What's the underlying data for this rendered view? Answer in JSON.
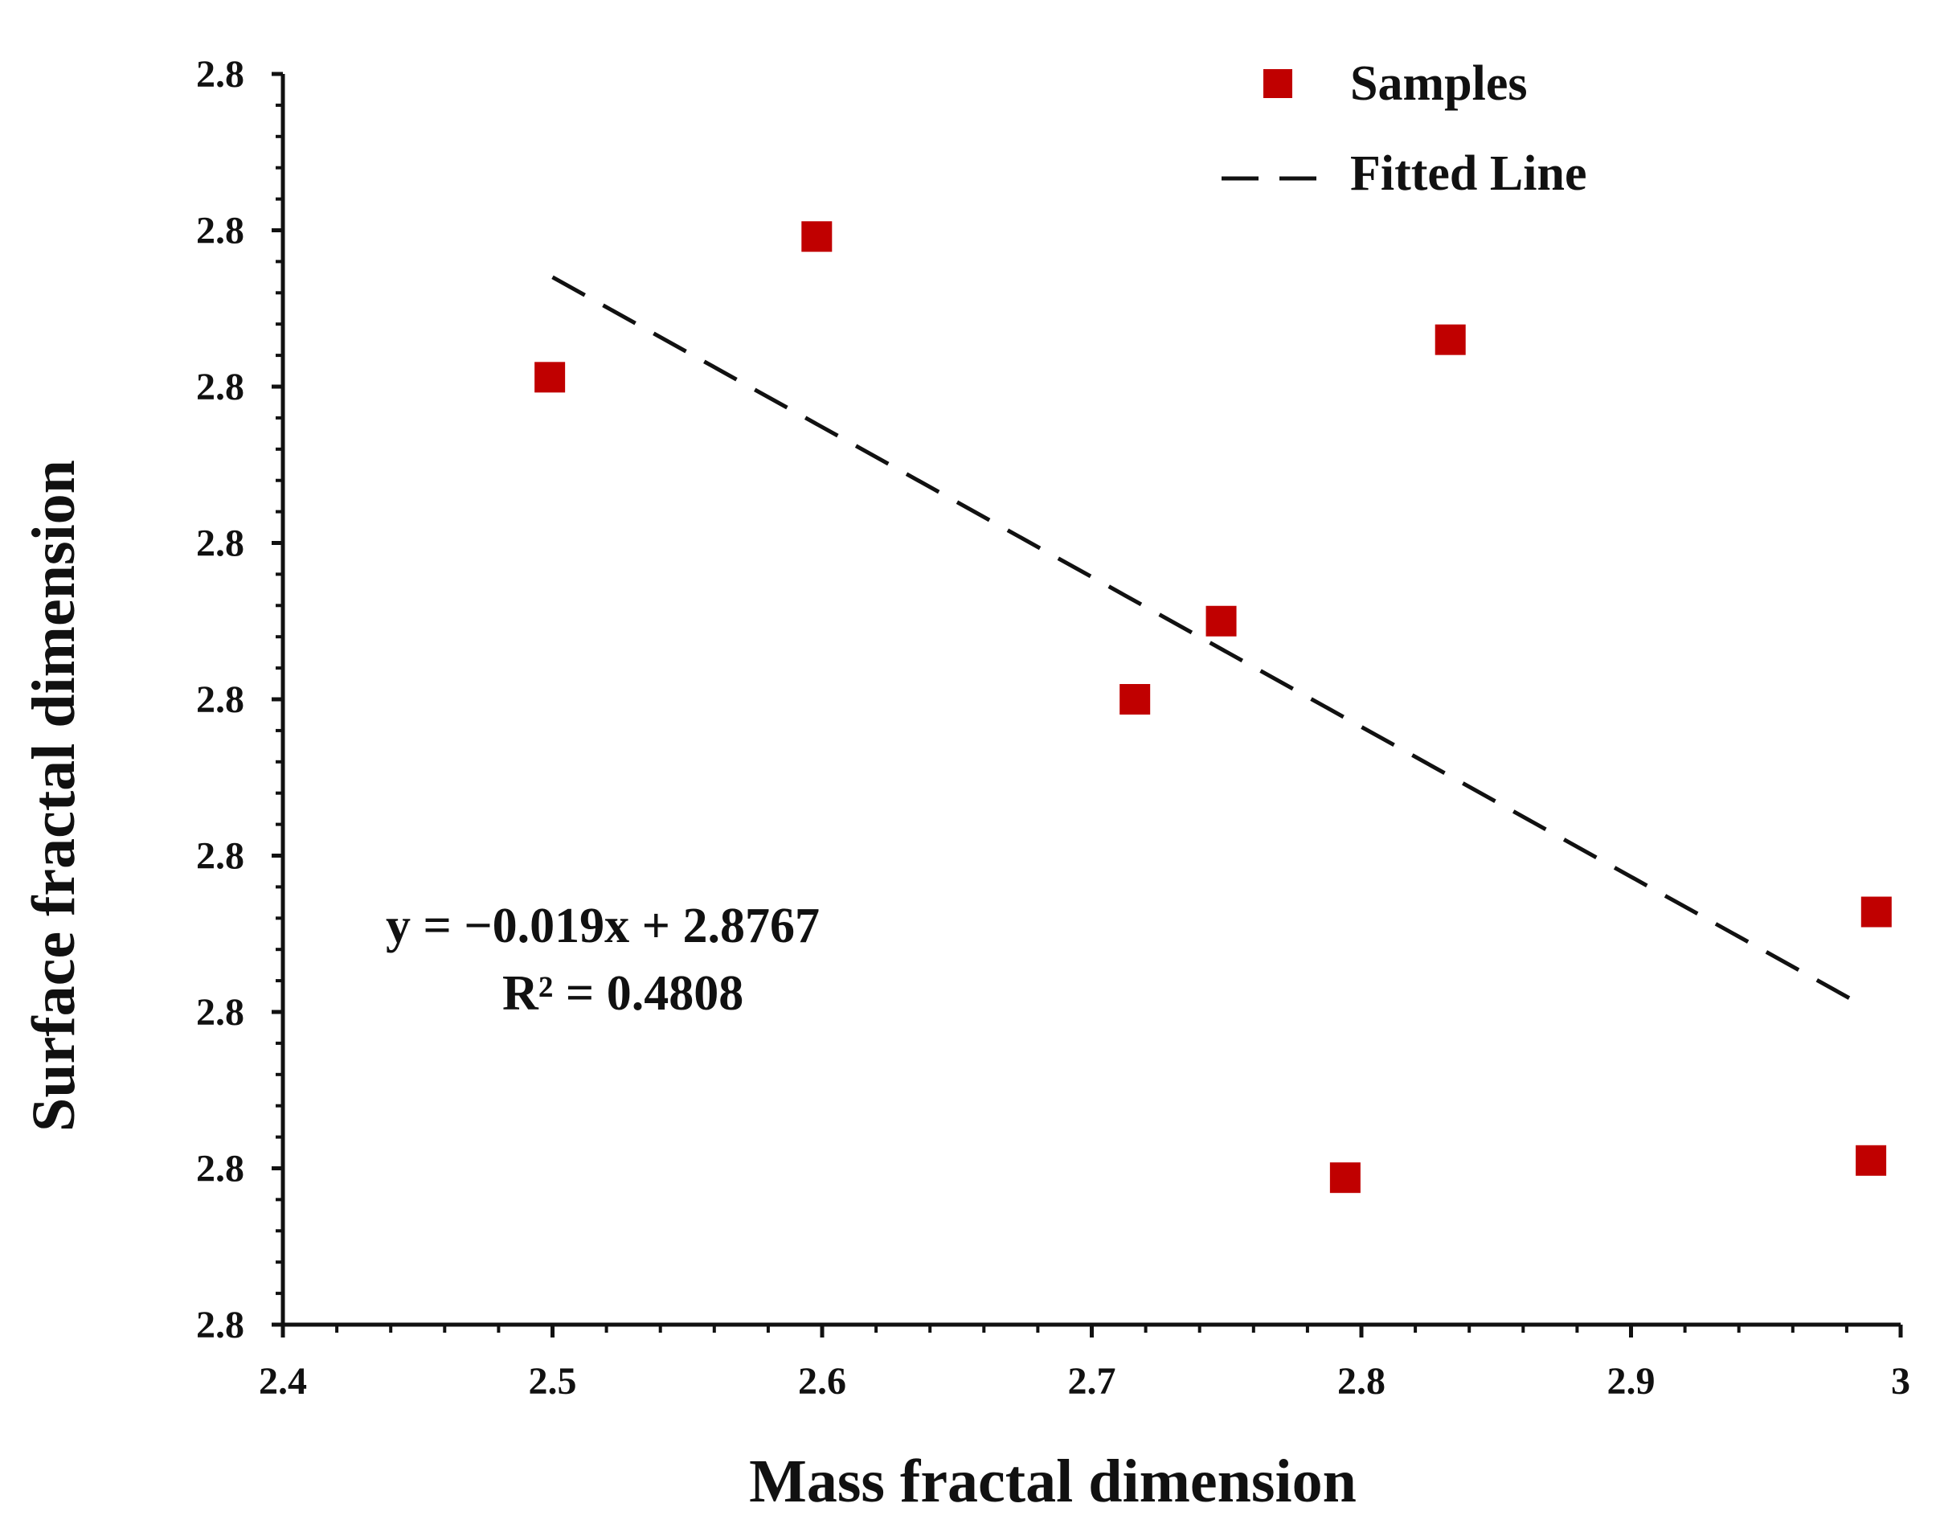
{
  "chart_data": {
    "type": "scatter",
    "xlabel": "Mass fractal dimension",
    "ylabel": "Surface fractal dimension",
    "xlim": [
      2.4,
      3.0
    ],
    "ylim": [
      0,
      8
    ],
    "x_ticks": [
      {
        "value": 2.4,
        "label": "2.4"
      },
      {
        "value": 2.5,
        "label": "2.5"
      },
      {
        "value": 2.6,
        "label": "2.6"
      },
      {
        "value": 2.7,
        "label": "2.7"
      },
      {
        "value": 2.8,
        "label": "2.8"
      },
      {
        "value": 2.9,
        "label": "2.9"
      },
      {
        "value": 3.0,
        "label": "3"
      }
    ],
    "y_ticks": [
      {
        "value": 0,
        "label": "2.8"
      },
      {
        "value": 1,
        "label": "2.8"
      },
      {
        "value": 2,
        "label": "2.8"
      },
      {
        "value": 3,
        "label": "2.8"
      },
      {
        "value": 4,
        "label": "2.8"
      },
      {
        "value": 5,
        "label": "2.8"
      },
      {
        "value": 6,
        "label": "2.8"
      },
      {
        "value": 7,
        "label": "2.8"
      },
      {
        "value": 8,
        "label": "2.8"
      }
    ],
    "series": [
      {
        "name": "Samples",
        "kind": "scatter",
        "marker": "square",
        "color": "#c00000",
        "points": [
          {
            "x": 2.499,
            "y": 6.06
          },
          {
            "x": 2.598,
            "y": 6.96
          },
          {
            "x": 2.716,
            "y": 4.0
          },
          {
            "x": 2.748,
            "y": 4.5
          },
          {
            "x": 2.794,
            "y": 0.94
          },
          {
            "x": 2.833,
            "y": 6.3
          },
          {
            "x": 2.991,
            "y": 2.64
          },
          {
            "x": 2.989,
            "y": 1.05
          }
        ]
      },
      {
        "name": "Fitted Line",
        "kind": "line",
        "style": "dashed",
        "color": "#111111",
        "points": [
          {
            "x": 2.5,
            "y": 6.7
          },
          {
            "x": 2.985,
            "y": 2.05
          }
        ]
      }
    ],
    "annotations": {
      "equation": "y = −0.019x + 2.8767",
      "r_squared": "R² = 0.4808"
    },
    "legend": {
      "position": "top-right",
      "entries": [
        "Samples",
        "Fitted Line"
      ]
    }
  }
}
